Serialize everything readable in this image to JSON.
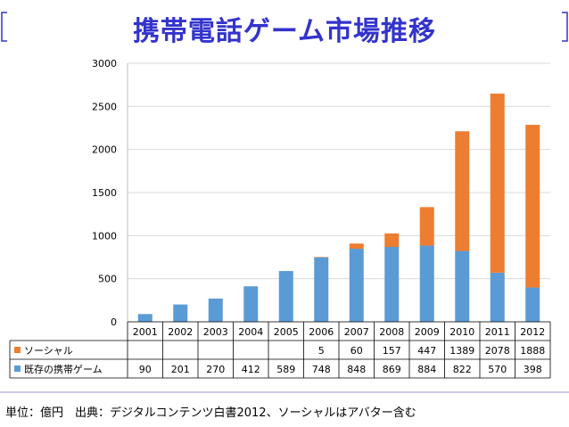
{
  "slide": {
    "title": "携帯電話ゲーム市場推移",
    "footnote": "単位：億円　出典：デジタルコンテンツ白書2012、ソーシャルはアバター含む"
  },
  "chart_data": {
    "type": "bar",
    "stacked": true,
    "title": "携帯電話ゲーム市場推移",
    "categories": [
      "2001",
      "2002",
      "2003",
      "2004",
      "2005",
      "2006",
      "2007",
      "2008",
      "2009",
      "2010",
      "2011",
      "2012"
    ],
    "series": [
      {
        "name": "既存の携帯ゲーム",
        "color": "#5b9bd5",
        "values": [
          90,
          201,
          270,
          412,
          589,
          748,
          848,
          869,
          884,
          822,
          570,
          398
        ],
        "labels": [
          "90",
          "201",
          "270",
          "412",
          "589",
          "748",
          "848",
          "869",
          "884",
          "822",
          "570",
          "398"
        ]
      },
      {
        "name": "ソーシャル",
        "color": "#ed7d31",
        "values": [
          0,
          0,
          0,
          0,
          0,
          5,
          60,
          157,
          447,
          1389,
          2078,
          1888
        ],
        "labels": [
          "",
          "",
          "",
          "",
          "",
          "5",
          "60",
          "157",
          "447",
          "1389",
          "2078",
          "1888"
        ]
      }
    ],
    "yticks": [
      "0",
      "500",
      "1000",
      "1500",
      "2000",
      "2500",
      "3000"
    ],
    "ylim": [
      0,
      3000
    ],
    "xlabel": "",
    "ylabel": "",
    "grid": true,
    "legend": "data-table"
  }
}
